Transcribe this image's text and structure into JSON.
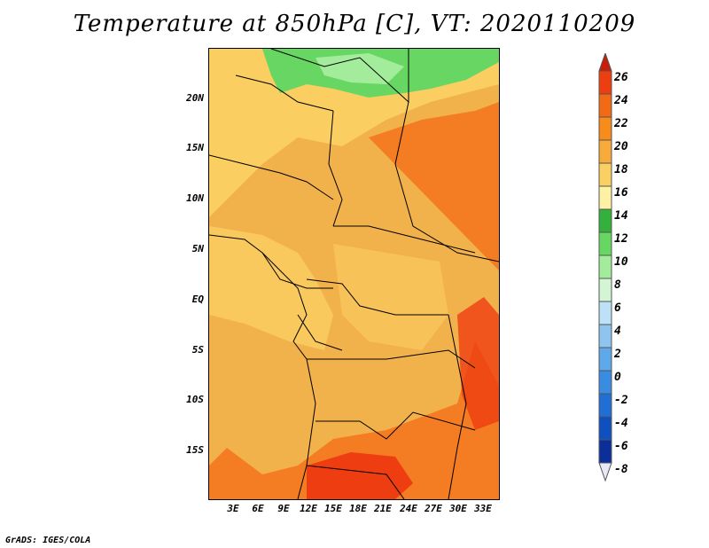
{
  "title": "Temperature at 850hPa [C], VT: 2020110209",
  "footer": "GrADS: IGES/COLA",
  "latitude_labels": [
    "20N",
    "15N",
    "10N",
    "5N",
    "EQ",
    "5S",
    "10S",
    "15S"
  ],
  "longitude_labels": [
    "3E",
    "6E",
    "9E",
    "12E",
    "15E",
    "18E",
    "21E",
    "24E",
    "27E",
    "30E",
    "33E"
  ],
  "colorbar": {
    "labels": [
      "26",
      "24",
      "22",
      "20",
      "18",
      "16",
      "14",
      "12",
      "10",
      "8",
      "6",
      "4",
      "2",
      "0",
      "-2",
      "-4",
      "-6",
      "-8"
    ],
    "colors": [
      "#c81e0a",
      "#ee3d10",
      "#f46a14",
      "#f88c1b",
      "#f7ab3a",
      "#fbd063",
      "#fdf1a6",
      "#33b13c",
      "#68d663",
      "#a3ec9b",
      "#d4f5d4",
      "#bde2f7",
      "#8ec5f0",
      "#5fa9ea",
      "#3a8ce2",
      "#1f6fd6",
      "#0f4fc0",
      "#0a2f98",
      "#061a6e"
    ]
  },
  "colors": {
    "warm_base": "#f2b24b",
    "pale_yellow": "#fbd063",
    "deep_orange": "#f46a14",
    "red_orange": "#ee3d10",
    "green": "#68d663",
    "dark_green": "#33b13c",
    "light_green": "#a3ec9b"
  }
}
